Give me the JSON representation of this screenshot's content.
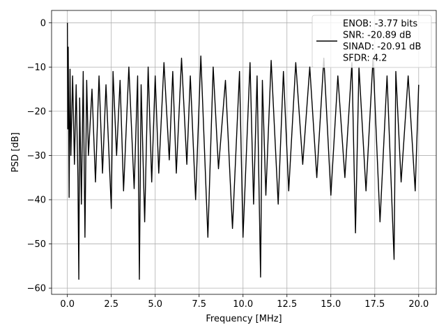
{
  "chart_data": {
    "type": "line",
    "xlabel": "Frequency [MHz]",
    "ylabel": "PSD [dB]",
    "xlim": [
      -0.9,
      21.0
    ],
    "ylim": [
      -61.4,
      2.8
    ],
    "xticks": [
      0.0,
      2.5,
      5.0,
      7.5,
      10.0,
      12.5,
      15.0,
      17.5,
      20.0
    ],
    "xtick_labels": [
      "0.0",
      "2.5",
      "5.0",
      "7.5",
      "10.0",
      "12.5",
      "15.0",
      "17.5",
      "20.0"
    ],
    "yticks": [
      0,
      -10,
      -20,
      -30,
      -40,
      -50,
      -60
    ],
    "ytick_labels": [
      "0",
      "−10",
      "−20",
      "−30",
      "−40",
      "−50",
      "−60"
    ],
    "grid": true,
    "line_color": "#000000",
    "legend": {
      "placement": "top-right",
      "entries": [
        "ENOB: -3.77 bits",
        "SNR: -20.89 dB",
        "SINAD: -20.91 dB",
        "SFDR: 4.2"
      ]
    },
    "series": [
      {
        "x": [
          0.0,
          0.02,
          0.05,
          0.1,
          0.15,
          0.2,
          0.3,
          0.4,
          0.5,
          0.6,
          0.65,
          0.7,
          0.8,
          0.9,
          1.0,
          1.1,
          1.2,
          1.4,
          1.6,
          1.8,
          2.0,
          2.2,
          2.5,
          2.6,
          2.8,
          3.0,
          3.2,
          3.5,
          3.8,
          4.0,
          4.1,
          4.2,
          4.4,
          4.6,
          4.8,
          5.0,
          5.2,
          5.5,
          5.8,
          6.0,
          6.2,
          6.5,
          6.8,
          7.0,
          7.3,
          7.6,
          8.0,
          8.3,
          8.6,
          9.0,
          9.4,
          9.8,
          10.0,
          10.4,
          10.6,
          10.8,
          11.0,
          11.1,
          11.3,
          11.6,
          12.0,
          12.3,
          12.6,
          13.0,
          13.4,
          13.8,
          14.2,
          14.6,
          15.0,
          15.4,
          15.8,
          16.2,
          16.4,
          16.6,
          17.0,
          17.4,
          17.8,
          18.2,
          18.6,
          18.7,
          19.0,
          19.4,
          19.8,
          20.0
        ],
        "y": [
          0.0,
          -24.0,
          -5.5,
          -39.5,
          -10.5,
          -30.0,
          -12.0,
          -32.0,
          -14.0,
          -35.0,
          -58.0,
          -17.0,
          -41.0,
          -11.0,
          -48.5,
          -13.0,
          -30.0,
          -15.0,
          -36.0,
          -12.0,
          -34.0,
          -14.0,
          -42.0,
          -11.0,
          -30.0,
          -13.0,
          -38.0,
          -10.0,
          -37.5,
          -12.0,
          -58.0,
          -14.0,
          -45.0,
          -10.0,
          -36.0,
          -12.0,
          -34.0,
          -9.0,
          -31.0,
          -11.0,
          -34.0,
          -8.0,
          -32.0,
          -12.0,
          -40.0,
          -7.5,
          -48.5,
          -10.0,
          -33.0,
          -13.0,
          -46.5,
          -11.0,
          -48.5,
          -9.0,
          -41.0,
          -12.0,
          -57.5,
          -13.0,
          -39.0,
          -8.5,
          -41.0,
          -11.0,
          -38.0,
          -9.0,
          -32.0,
          -10.0,
          -35.0,
          -8.0,
          -39.0,
          -12.0,
          -35.0,
          -9.0,
          -47.5,
          -10.0,
          -38.0,
          -8.0,
          -45.0,
          -12.0,
          -53.5,
          -11.0,
          -36.0,
          -12.0,
          -38.0,
          -14.0
        ]
      }
    ]
  }
}
